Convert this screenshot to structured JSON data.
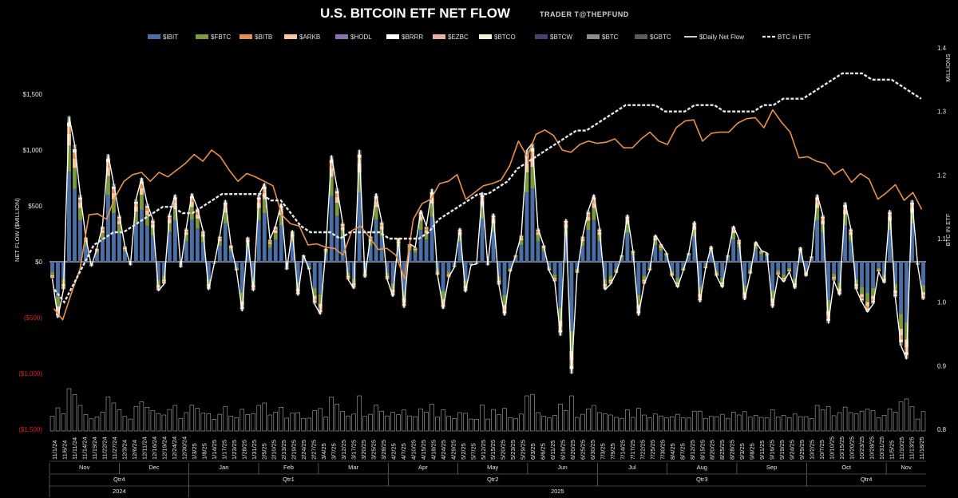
{
  "title": "U.S. BITCOIN ETF NET FLOW",
  "subtitle": "TRADER T@THEPFUND",
  "colors": {
    "IBIT": "#4a6fa5",
    "FBTC": "#7a9a3c",
    "BITB": "#e8904a",
    "ARKB": "#f4c6a0",
    "HODL": "#8b6fb5",
    "BRRR": "#ffffff",
    "EZBC": "#e8b0a0",
    "BTCO": "#f5f0d8",
    "BTCW": "#4a3f6e",
    "BTC": "#8c8c8c",
    "GBTC": "#5a5a5a",
    "daily_net": "#ffffff",
    "btc_in_etf": "#e6e6e6",
    "zero_line": "#ffffff"
  },
  "chart_data": {
    "type": "bar",
    "legend": [
      {
        "label": "$IBIT",
        "key": "IBIT",
        "kind": "bar"
      },
      {
        "label": "$FBTC",
        "key": "FBTC",
        "kind": "bar"
      },
      {
        "label": "$BITB",
        "key": "BITB",
        "kind": "bar"
      },
      {
        "label": "$ARKB",
        "key": "ARKB",
        "kind": "bar"
      },
      {
        "label": "$HODL",
        "key": "HODL",
        "kind": "bar"
      },
      {
        "label": "$BRRR",
        "key": "BRRR",
        "kind": "bar"
      },
      {
        "label": "$EZBC",
        "key": "EZBC",
        "kind": "bar"
      },
      {
        "label": "$BTCO",
        "key": "BTCO",
        "kind": "bar"
      },
      {
        "label": "$BTCW",
        "key": "BTCW",
        "kind": "bar"
      },
      {
        "label": "$BTC",
        "key": "BTC",
        "kind": "bar"
      },
      {
        "label": "$GBTC",
        "key": "GBTC",
        "kind": "bar"
      },
      {
        "label": "$Daily Net Flow",
        "key": "daily_net",
        "kind": "line"
      },
      {
        "label": "BTC in ETF",
        "key": "btc_in_etf",
        "kind": "dashed"
      }
    ],
    "y_left": {
      "label": "NET FLOW ($MILLION)",
      "min": -1500,
      "max": 1500,
      "ticks": [
        {
          "v": 1500,
          "t": "$1,500",
          "neg": false
        },
        {
          "v": 1000,
          "t": "$1,000",
          "neg": false
        },
        {
          "v": 500,
          "t": "$500",
          "neg": false
        },
        {
          "v": 0,
          "t": "$0",
          "neg": false
        },
        {
          "v": -500,
          "t": "($500)",
          "neg": true
        },
        {
          "v": -1000,
          "t": "($1,000)",
          "neg": true
        },
        {
          "v": -1500,
          "t": "($1,500)",
          "neg": true
        }
      ]
    },
    "y_right": {
      "label": "BTC IN ETF",
      "unit": "MILLIONS",
      "min": 0.8,
      "max": 1.4,
      "ticks": [
        "1.4",
        "1.3",
        "1.2",
        "1.1",
        "1.0",
        "0.9",
        "0.8"
      ]
    },
    "x_dates": [
      "11/1/24",
      "11/6/24",
      "11/11/24",
      "11/14/24",
      "11/19/24",
      "11/22/24",
      "11/27/24",
      "12/3/24",
      "12/6/24",
      "12/11/24",
      "12/16/24",
      "12/19/24",
      "12/24/24",
      "12/30/24",
      "1/3/25",
      "1/8/25",
      "1/14/25",
      "1/17/25",
      "1/23/25",
      "1/28/25",
      "1/31/25",
      "2/5/25",
      "2/10/25",
      "2/13/25",
      "2/19/25",
      "2/24/25",
      "2/27/25",
      "3/4/25",
      "3/7/25",
      "3/12/25",
      "3/17/25",
      "3/20/25",
      "3/25/25",
      "3/28/25",
      "4/2/25",
      "4/7/25",
      "4/10/25",
      "4/15/25",
      "4/18/25",
      "4/24/25",
      "4/29/25",
      "5/2/25",
      "5/7/25",
      "5/12/25",
      "5/15/25",
      "5/20/25",
      "5/23/25",
      "5/29/25",
      "6/3/25",
      "6/6/25",
      "6/11/25",
      "6/16/25",
      "6/20/25",
      "6/25/25",
      "6/30/25",
      "7/3/25",
      "7/9/25",
      "7/14/25",
      "7/17/25",
      "7/22/25",
      "7/25/25",
      "7/30/25",
      "8/4/25",
      "8/7/25",
      "8/12/25",
      "8/15/25",
      "8/20/25",
      "8/25/25",
      "8/28/25",
      "9/3/25",
      "9/8/25",
      "9/11/25",
      "9/16/25",
      "9/19/25",
      "9/24/25",
      "9/29/25",
      "10/2/25",
      "10/7/25",
      "10/10/25",
      "10/15/25",
      "10/20/25",
      "10/23/25",
      "10/28/25",
      "10/31/25",
      "11/5/25",
      "11/10/25",
      "11/13/25",
      "11/18/25"
    ],
    "months": [
      {
        "label": "Nov",
        "from": 0,
        "to": 6
      },
      {
        "label": "Dec",
        "from": 7,
        "to": 13
      },
      {
        "label": "Jan",
        "from": 14,
        "to": 20
      },
      {
        "label": "Feb",
        "from": 21,
        "to": 26
      },
      {
        "label": "Mar",
        "from": 27,
        "to": 33
      },
      {
        "label": "Apr",
        "from": 34,
        "to": 40
      },
      {
        "label": "May",
        "from": 41,
        "to": 47
      },
      {
        "label": "Jun",
        "from": 48,
        "to": 54
      },
      {
        "label": "Jul",
        "from": 55,
        "to": 61
      },
      {
        "label": "Aug",
        "from": 62,
        "to": 68
      },
      {
        "label": "Sep",
        "from": 69,
        "to": 75
      },
      {
        "label": "Oct",
        "from": 76,
        "to": 83
      },
      {
        "label": "Nov",
        "from": 84,
        "to": 87
      }
    ],
    "quarters": [
      {
        "label": "Qtr4",
        "from": 0,
        "to": 13
      },
      {
        "label": "Qtr1",
        "from": 14,
        "to": 33
      },
      {
        "label": "Qtr2",
        "from": 34,
        "to": 54
      },
      {
        "label": "Qtr3",
        "from": 55,
        "to": 75
      },
      {
        "label": "Qtr4",
        "from": 76,
        "to": 87
      }
    ],
    "years": [
      {
        "label": "2024",
        "from": 0,
        "to": 13
      },
      {
        "label": "2025",
        "from": 14,
        "to": 87
      }
    ],
    "daily_net_flow": [
      -150,
      -500,
      -250,
      1300,
      1050,
      600,
      220,
      -40,
      120,
      320,
      960,
      700,
      420,
      140,
      -30,
      560,
      750,
      520,
      380,
      -260,
      -200,
      430,
      600,
      -50,
      300,
      610,
      480,
      280,
      -250,
      -20,
      230,
      550,
      150,
      -80,
      -440,
      220,
      -260,
      600,
      700,
      200,
      320,
      520,
      -70,
      280,
      -300,
      60,
      -70,
      -380,
      -470,
      120,
      950,
      660,
      350,
      -160,
      -240,
      1000,
      -140,
      230,
      610,
      360,
      -160,
      -310,
      210,
      -410,
      160,
      130,
      460,
      320,
      650,
      -120,
      -420,
      -140,
      -50,
      300,
      -270,
      -30,
      -20,
      620,
      -30,
      430,
      -210,
      -480,
      -90,
      60,
      240,
      1000,
      1060,
      300,
      150,
      -80,
      -180,
      -660,
      380,
      -1000,
      -100,
      230,
      460,
      600,
      300,
      -250,
      -200,
      -100,
      60,
      420,
      100,
      -480,
      -200,
      -80,
      240,
      160,
      80,
      -130,
      -230,
      -80,
      80,
      360,
      -360,
      -60,
      140,
      -130,
      -230,
      60,
      320,
      200,
      -340,
      -110,
      180,
      100,
      80,
      -410,
      -120,
      -180,
      -90,
      -240,
      130,
      -130,
      50,
      600,
      420,
      -550,
      -170,
      -300,
      530,
      300,
      -250,
      -360,
      -450,
      -380,
      -90,
      -190,
      460,
      -320,
      -750,
      -870,
      550,
      -30,
      -340
    ],
    "btc_in_etf_millions": [
      1.02,
      1.0,
      1.03,
      1.06,
      1.09,
      1.1,
      1.11,
      1.11,
      1.12,
      1.13,
      1.14,
      1.15,
      1.15,
      1.14,
      1.14,
      1.15,
      1.16,
      1.17,
      1.17,
      1.17,
      1.17,
      1.17,
      1.16,
      1.16,
      1.14,
      1.12,
      1.11,
      1.11,
      1.11,
      1.1,
      1.11,
      1.11,
      1.11,
      1.11,
      1.1,
      1.1,
      1.1,
      1.1,
      1.11,
      1.13,
      1.14,
      1.15,
      1.16,
      1.17,
      1.17,
      1.18,
      1.19,
      1.21,
      1.22,
      1.23,
      1.24,
      1.25,
      1.26,
      1.27,
      1.27,
      1.28,
      1.29,
      1.3,
      1.31,
      1.31,
      1.31,
      1.31,
      1.3,
      1.3,
      1.3,
      1.31,
      1.31,
      1.31,
      1.3,
      1.3,
      1.3,
      1.3,
      1.31,
      1.31,
      1.32,
      1.32,
      1.32,
      1.33,
      1.34,
      1.35,
      1.36,
      1.36,
      1.36,
      1.35,
      1.35,
      1.35,
      1.34,
      1.33,
      1.32
    ],
    "bitb_orange_line": [
      -420,
      -520,
      -280,
      -60,
      420,
      430,
      380,
      580,
      720,
      780,
      800,
      720,
      800,
      760,
      820,
      880,
      960,
      900,
      1000,
      940,
      820,
      720,
      790,
      760,
      720,
      680,
      420,
      340,
      320,
      150,
      160,
      130,
      120,
      60,
      280,
      320,
      220,
      110,
      120,
      60,
      -150,
      380,
      520,
      560,
      700,
      720,
      780,
      560,
      620,
      680,
      700,
      730,
      860,
      1080,
      940,
      1140,
      1180,
      1130,
      1000,
      980,
      1050,
      1080,
      1060,
      1070,
      1100,
      1020,
      1020,
      1100,
      1160,
      1080,
      1050,
      1200,
      1260,
      1270,
      1080,
      1150,
      1160,
      1160,
      1240,
      1280,
      1290,
      1200,
      1360,
      1250,
      1160,
      930,
      940,
      900,
      880,
      780,
      830,
      710,
      790,
      740,
      560,
      620,
      690,
      550,
      620,
      470
    ]
  }
}
